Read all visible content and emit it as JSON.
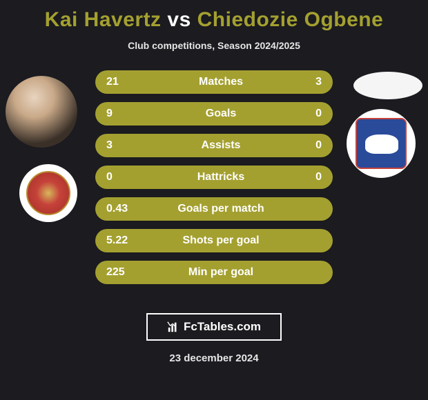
{
  "title": {
    "player1": "Kai Havertz",
    "vs": "vs",
    "player2": "Chiedozie Ogbene",
    "color_player": "#a4a030",
    "color_vs": "#ffffff",
    "fontsize": 30
  },
  "subtitle": "Club competitions, Season 2024/2025",
  "bars": {
    "background_color": "#a4a030",
    "text_color": "#ffffff",
    "fontsize": 16,
    "height": 34,
    "gap": 12,
    "radius": 18,
    "items": [
      {
        "left": "21",
        "label": "Matches",
        "right": "3"
      },
      {
        "left": "9",
        "label": "Goals",
        "right": "0"
      },
      {
        "left": "3",
        "label": "Assists",
        "right": "0"
      },
      {
        "left": "0",
        "label": "Hattricks",
        "right": "0"
      },
      {
        "left": "0.43",
        "label": "Goals per match",
        "right": ""
      },
      {
        "left": "5.22",
        "label": "Shots per goal",
        "right": ""
      },
      {
        "left": "225",
        "label": "Min per goal",
        "right": ""
      }
    ]
  },
  "branding": {
    "label": "FcTables.com",
    "border_color": "#ffffff"
  },
  "date": "23 december 2024",
  "colors": {
    "page_background": "#1b1b20",
    "avatar_left_bg": "#c9a988",
    "avatar_right_bg": "#f5f5f5",
    "club_badge_bg": "#ffffff",
    "club_left_primary": "#c5423a",
    "club_right_primary": "#2a4a9a"
  }
}
